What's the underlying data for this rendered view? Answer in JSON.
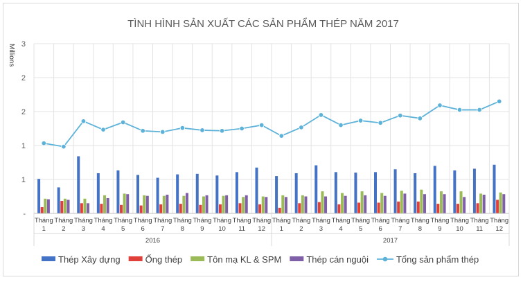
{
  "chart_data": {
    "type": "bar",
    "title": "TÌNH HÌNH SẢN XUẤT CÁC SẢN PHẨM THÉP NĂM 2017",
    "ylabel": "Millions",
    "ylim": [
      0,
      3
    ],
    "y_ticks": [
      "-",
      "1",
      "1",
      "2",
      "2",
      "3"
    ],
    "grid": "vertical",
    "legend_position": "bottom",
    "month_word": "Tháng",
    "categories": [
      "1",
      "2",
      "3",
      "4",
      "5",
      "6",
      "7",
      "8",
      "9",
      "10",
      "11",
      "12",
      "1",
      "2",
      "3",
      "4",
      "5",
      "6",
      "7",
      "8",
      "9",
      "10",
      "11",
      "12"
    ],
    "groups": [
      {
        "label": "2016",
        "start": 0,
        "end": 11
      },
      {
        "label": "2017",
        "start": 12,
        "end": 23
      }
    ],
    "series": [
      {
        "name": "Thép Xây dựng",
        "type": "bar",
        "color": "#4472C4",
        "values": [
          0.61,
          0.46,
          1.01,
          0.71,
          0.76,
          0.68,
          0.63,
          0.69,
          0.7,
          0.67,
          0.73,
          0.81,
          0.66,
          0.71,
          0.85,
          0.73,
          0.72,
          0.73,
          0.78,
          0.71,
          0.84,
          0.76,
          0.79,
          0.86
        ]
      },
      {
        "name": "Ống thép",
        "type": "bar",
        "color": "#E0403A",
        "values": [
          0.11,
          0.22,
          0.18,
          0.17,
          0.15,
          0.14,
          0.16,
          0.17,
          0.15,
          0.16,
          0.18,
          0.16,
          0.1,
          0.18,
          0.2,
          0.16,
          0.19,
          0.19,
          0.21,
          0.21,
          0.17,
          0.17,
          0.18,
          0.24
        ]
      },
      {
        "name": "Tôn mạ KL & SPM",
        "type": "bar",
        "color": "#9BBB59",
        "values": [
          0.26,
          0.26,
          0.26,
          0.32,
          0.35,
          0.32,
          0.31,
          0.31,
          0.3,
          0.31,
          0.29,
          0.3,
          0.32,
          0.32,
          0.39,
          0.36,
          0.39,
          0.36,
          0.4,
          0.42,
          0.39,
          0.39,
          0.35,
          0.37
        ]
      },
      {
        "name": "Thép cán nguội",
        "type": "bar",
        "color": "#7F5FA8",
        "values": [
          0.25,
          0.24,
          0.18,
          0.27,
          0.34,
          0.31,
          0.33,
          0.36,
          0.32,
          0.32,
          0.32,
          0.29,
          0.29,
          0.3,
          0.3,
          0.31,
          0.32,
          0.31,
          0.35,
          0.34,
          0.34,
          0.29,
          0.33,
          0.34
        ]
      },
      {
        "name": "Tổng sản phẩm thép",
        "type": "line",
        "color": "#5DB2D9",
        "values": [
          1.24,
          1.18,
          1.63,
          1.48,
          1.61,
          1.46,
          1.44,
          1.51,
          1.47,
          1.46,
          1.5,
          1.56,
          1.37,
          1.52,
          1.74,
          1.56,
          1.64,
          1.6,
          1.73,
          1.68,
          1.91,
          1.83,
          1.83,
          1.98
        ]
      }
    ]
  }
}
